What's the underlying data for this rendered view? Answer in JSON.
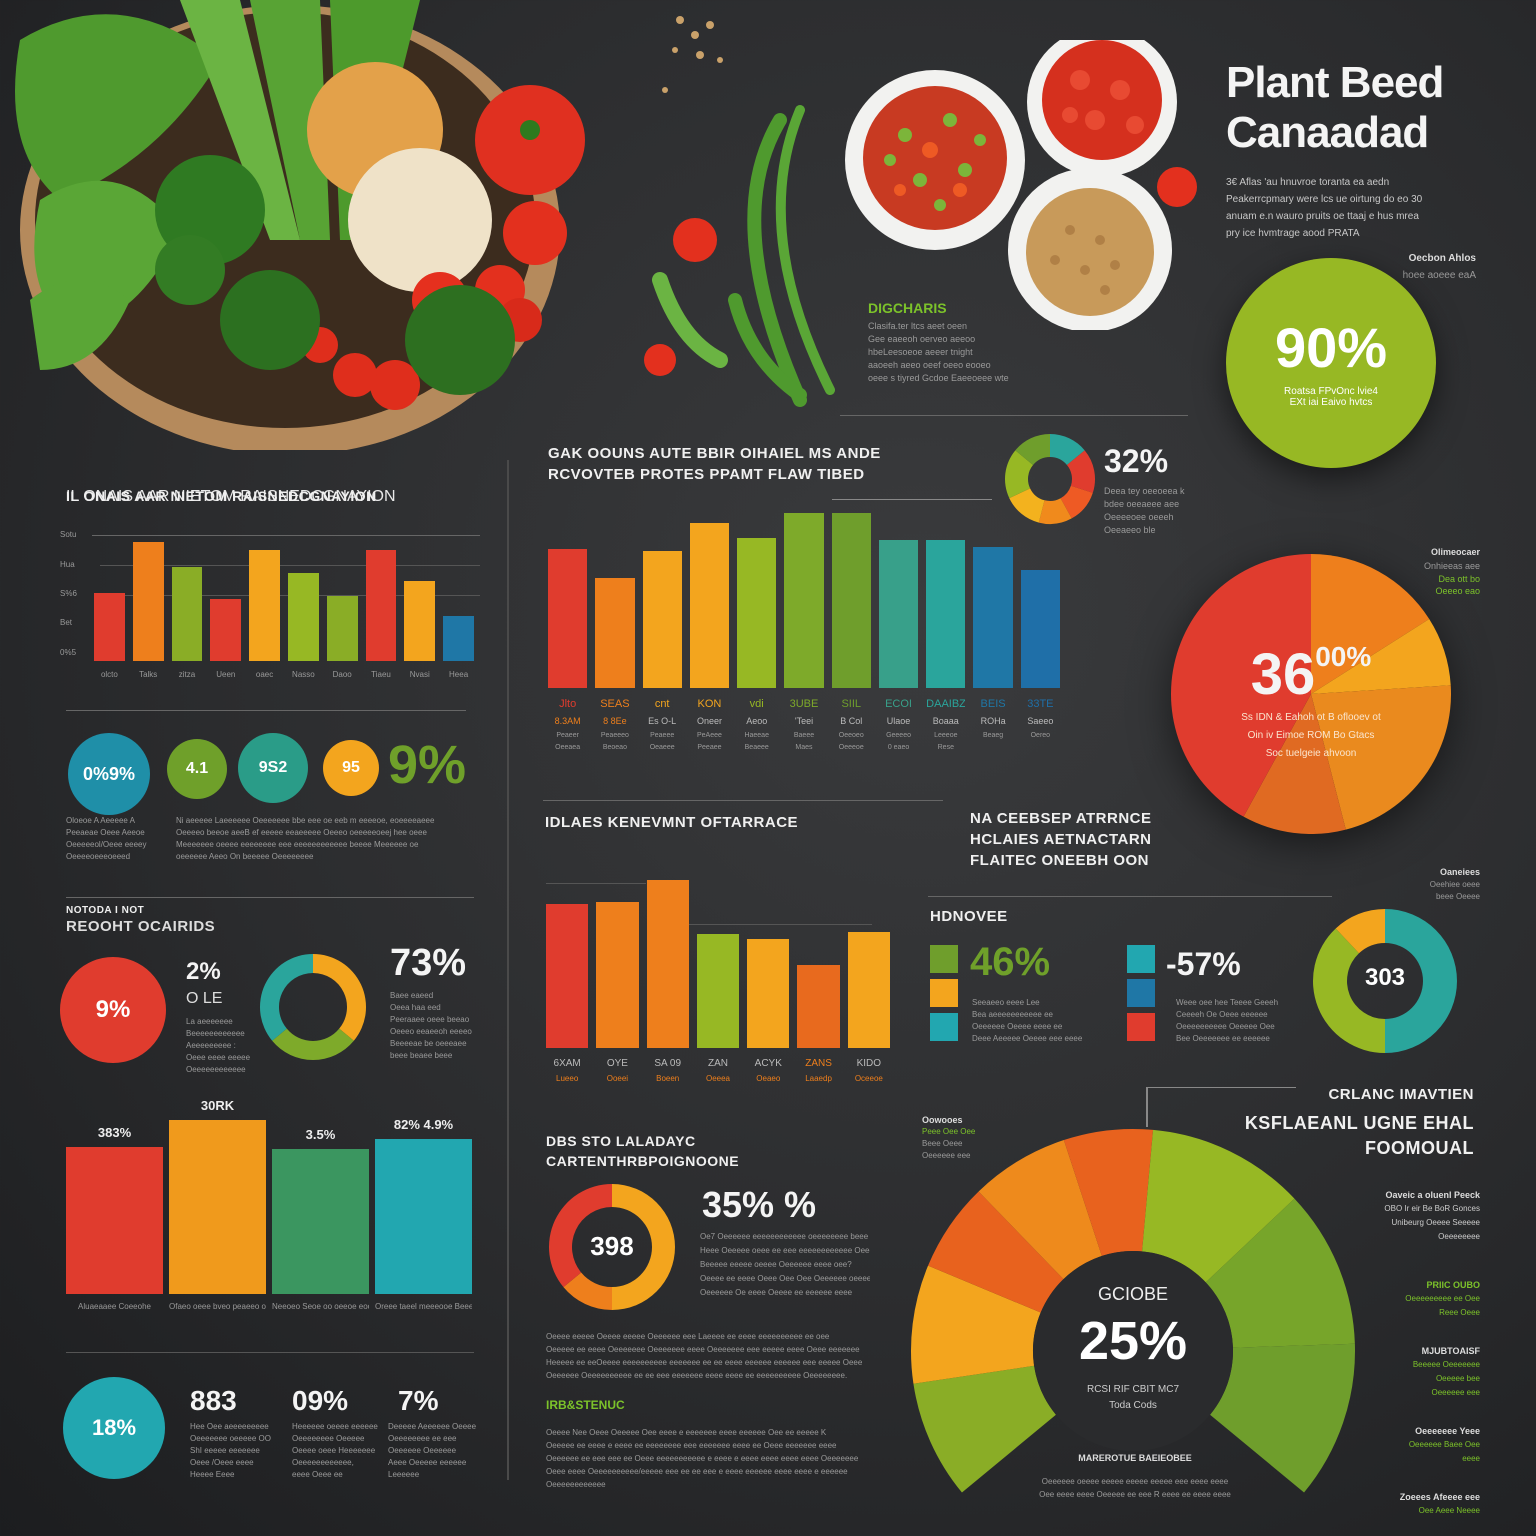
{
  "title": {
    "line1": "Plant Beed",
    "line2": "Canaadad"
  },
  "intro": {
    "lines": [
      "3€ Aflas 'au hnuvroe toranta ea aedn",
      "Peakerrcpmary were lcs ue oirtung do eo 30",
      "anuam e.n wauro pruits oe ttaaj e hus mrea",
      "pry ice hvmtrage aood PRATA"
    ],
    "side_label": "Oecbon Ahlos",
    "side_sub": "hoee aoeee eaA"
  },
  "colors": {
    "red": "#e03c2e",
    "orange": "#ee7f1c",
    "amber": "#f3a51e",
    "lime": "#97b824",
    "green": "#6f9e2c",
    "teal": "#2aa59c",
    "cyan": "#22a7b0",
    "blue": "#1f77a6",
    "bg": "#2b2c2e"
  },
  "hero_image": {
    "alt": "wooden-bowl-of-vegetables-grains-tomatoes",
    "bowls": [
      "mixed-peppers-bowl",
      "cherry-tomatoes-bowl",
      "chickpeas-bowl"
    ]
  },
  "digcharis": {
    "title": "DIGCHARIS",
    "lines": [
      "Clasifa.ter ltcs aeet oeen",
      "Gee eaeeoh oerveo aeeoo",
      "hbeLeesoeoe aeeer tnight",
      "aaoeeh aeeo oeef oeeo eooeo",
      "oeee s tiyred Gcdoe Eaeeoeee wte"
    ]
  },
  "ninety": {
    "value": "90%",
    "lines": [
      "Roatsa FPvOnc lvie4",
      "EXt iai Eaivo hvtcs"
    ]
  },
  "chart_data": [
    {
      "id": "chart-left-top",
      "type": "bar",
      "title": "IL ONAIS AAR NIETOM RAISNEDCGNAYION",
      "categories": [
        "olcto",
        "Talks",
        "zitza",
        "Ueen",
        "oaec",
        "Nasso",
        "Daoo",
        "Tiaeu",
        "Nvasi",
        "Heea"
      ],
      "values": [
        52,
        91,
        72,
        47,
        85,
        67,
        50,
        85,
        61,
        34
      ],
      "colors": [
        "#e03c2e",
        "#ee7f1c",
        "#8aad26",
        "#e03c2e",
        "#f3a51e",
        "#97b824",
        "#8aad26",
        "#e03c2e",
        "#f3a51e",
        "#2aa59c"
      ],
      "last_color": "#1f77a6",
      "yticks": [
        "Sotu",
        "Hua",
        "S%6",
        "Bet",
        "0%5"
      ],
      "ylim": [
        0,
        100
      ],
      "grid": true
    },
    {
      "id": "chart-center-top",
      "type": "bar",
      "title": "GAK OOUNS AUTE BBIR OIHAIEL MS ANDE RCVOVTEB PROTES PPAMT FLAW TIBED",
      "categories": [
        "Jlto",
        "SEAS",
        "cnt",
        "KON",
        "vdi",
        "3UBE",
        "SIIL",
        "ECOI",
        "DAAIBZ",
        "BEIS",
        "33TE"
      ],
      "values": [
        66,
        52,
        65,
        78,
        71,
        83,
        83,
        70,
        70,
        67,
        56
      ],
      "colors": [
        "#e03c2e",
        "#ee7f1c",
        "#f3a51e",
        "#f3a51e",
        "#97b824",
        "#7eaa2a",
        "#6f9e2c",
        "#38a08a",
        "#2aa59c",
        "#1f77a6",
        "#1f6fa8"
      ],
      "sublabels": [
        "8.3AM",
        "8 8Ee",
        "Es O-L",
        "Oneer",
        "Aeoo",
        "'Teei",
        "B Col",
        "Ulaoe",
        "Boaaa",
        "ROHa",
        "Saeeo"
      ],
      "notes": [
        "Peaeer Oeeaea",
        "Peaeeeo Beoeao",
        "Peaeee Oeaeee",
        "PeAeee Peeaee",
        "Haeeae Beaeee",
        "Baeee Maes",
        "Oeeoeo Oeeeoe",
        "Geeeeo 0 eaeo",
        "Leeeoe Rese",
        "Beaeg",
        "Oereo"
      ],
      "ylim": [
        0,
        100
      ]
    },
    {
      "id": "chart-center-mid",
      "type": "bar",
      "title": "IDLAES KENEVMNT OFTARRACE",
      "categories": [
        "6XAM",
        "OYE",
        "SA 09",
        "ZAN",
        "ACYK",
        "ZANS",
        "KIDO"
      ],
      "sublabels": [
        "Lueeo",
        "Ooeei",
        "Boeen",
        "Oeeea",
        "Oeaeo",
        "Laaedp",
        "Oceeoe"
      ],
      "values": [
        66,
        67,
        77,
        52,
        50,
        38,
        53
      ],
      "colors": [
        "#e03c2e",
        "#ee7f1c",
        "#ee7f1c",
        "#97b824",
        "#f3a51e",
        "#e86a1e",
        "#f3a51e"
      ],
      "ylim": [
        0,
        100
      ]
    },
    {
      "id": "chart-left-bottom",
      "type": "bar",
      "categories": [
        "Aluaeaaee Coeeohe",
        "Ofaeo oeee bveo peaeeo o",
        "Neeoeo Seoe oo oeeoe eooe",
        "Oreee taeel meeeooe Beee"
      ],
      "value_labels": [
        "383%",
        "30RK",
        "3.5%",
        "82% 4.9%"
      ],
      "values": [
        76,
        90,
        75,
        80
      ],
      "colors": [
        "#e03c2e",
        "#f09a1c",
        "#3b9660",
        "#22a7b0"
      ],
      "ylim": [
        0,
        100
      ]
    },
    {
      "id": "donut-top",
      "type": "pie",
      "value_label": "32%",
      "slices": [
        {
          "color": "#2aa59c",
          "v": 14
        },
        {
          "color": "#e03c2e",
          "v": 16
        },
        {
          "color": "#ee5a24",
          "v": 12
        },
        {
          "color": "#f08a1c",
          "v": 12
        },
        {
          "color": "#f3b21e",
          "v": 14
        },
        {
          "color": "#97b824",
          "v": 18
        },
        {
          "color": "#6f9e2c",
          "v": 14
        }
      ],
      "lines": [
        "Deea tey oeeoeea k",
        "bdee oeeaeee aee",
        "Oeeeeoee oeeeh",
        "Oeeaeeo ble"
      ]
    },
    {
      "id": "pie-36",
      "type": "pie",
      "value_label": "36",
      "value_suffix": "00%",
      "lines": [
        "Ss IDN & Eahoh ot B oflooev ot",
        "Oin iv Eimoe ROM Bo Gtacs",
        "Soc tuelgeie ahvoon"
      ],
      "slices": [
        {
          "color": "#ee7f1c",
          "v": 16
        },
        {
          "color": "#f3a51e",
          "v": 8
        },
        {
          "color": "#ea8a1e",
          "v": 22
        },
        {
          "color": "#e06a22",
          "v": 12
        },
        {
          "color": "#e03c2e",
          "v": 42
        }
      ],
      "side_title": "Olimeocaer",
      "side_lines": [
        "Onhieeas aee",
        "Dea ott bo",
        "Oeeeo eao"
      ]
    },
    {
      "id": "donut-73",
      "type": "pie",
      "value_label": "73%",
      "slices": [
        {
          "color": "#f3a51e",
          "v": 36
        },
        {
          "color": "#7eaa2a",
          "v": 28
        },
        {
          "color": "#2aa59c",
          "v": 36
        }
      ],
      "lines": [
        "Baee eaeed",
        "Oeea haa eed",
        "Peeraaee oeee beeao",
        "Oeeeo eeaeeoh eeeeo",
        "Beeeeae be oeeeaee",
        "beee beaee beee"
      ]
    },
    {
      "id": "donut-303",
      "type": "pie",
      "value_label": "303",
      "slices": [
        {
          "color": "#2aa59c",
          "v": 50
        },
        {
          "color": "#97b824",
          "v": 38
        },
        {
          "color": "#f3a51e",
          "v": 12
        }
      ],
      "side_title": "Oaneiees",
      "side_lines": [
        "Oeehiee oeee",
        "beee Oeeee"
      ]
    },
    {
      "id": "donut-398",
      "type": "pie",
      "value_label": "398",
      "slices": [
        {
          "color": "#f3a51e",
          "v": 50
        },
        {
          "color": "#ee7f1c",
          "v": 14
        },
        {
          "color": "#e03c2e",
          "v": 36
        }
      ]
    },
    {
      "id": "gauge-25",
      "type": "pie",
      "value_label": "25%",
      "top_label": "GCIOBE",
      "bottom_lines": [
        "RCSI RIF CBIT MC7",
        "Toda Cods"
      ],
      "slices": [
        {
          "color": "#8aad26",
          "v": 12
        },
        {
          "color": "#f3a51e",
          "v": 12
        },
        {
          "color": "#e8621e",
          "v": 9
        },
        {
          "color": "#ee8a1c",
          "v": 10
        },
        {
          "color": "#e8621e",
          "v": 9
        },
        {
          "color": "#97b824",
          "v": 16
        },
        {
          "color": "#77a52a",
          "v": 16
        },
        {
          "color": "#6f9e2c",
          "v": 16
        }
      ]
    }
  ],
  "stats_row": {
    "circles": [
      {
        "label": "0%9%",
        "color": "#1f8fa8"
      },
      {
        "label": "4.1",
        "color": "#6fa02a"
      },
      {
        "label": "9S2",
        "color": "#2a9c88"
      },
      {
        "label": "95",
        "color": "#f3a51e"
      }
    ],
    "big_value": "9%",
    "left_lines": [
      "Oloeoe A Aeeeee A",
      "Peeaeae Oeee Aeeoe",
      "Oeeeeeol/Oeee eeeey",
      "Oeeeeoeeeoeeed"
    ],
    "right_lines": [
      "Ni aeeeee Laeeeeee Oeeeeeee bbe eee oe eeb m eeeeoe, eoeeeeaeee",
      "Oeeeeo beeoe aeeB ef eeeee eeaeeeee Oeeeo oeeeeeoeej hee oeee",
      "Meeeeeee oeeee eeeeeeee eee eeeeeeeeeeee beeee Meeeeee oe",
      "oeeeeee Aeeo On beeeee Oeeeeeeee"
    ]
  },
  "recent": {
    "kicker": "NOTODA I NOT",
    "title": "REOOHT OCAIRIDS",
    "red_circle": "9%",
    "two_value": "2%",
    "two_sub": "O LE",
    "two_lines": [
      "La aeeeeeee",
      "Beeeeeeeeeeee",
      "Aeeeeeeeee :",
      "Oeee eeee eeeee",
      "Oeeeeeeeeeeee"
    ]
  },
  "rhs_heading": {
    "lines": [
      "NA CEEBSEP ATRRNCE",
      "HCLAIES AETNACTARN",
      "FLAITEC ONEEBH OON"
    ]
  },
  "hdnovee": {
    "title": "HDNOVEE",
    "v1": "46%",
    "v1_swatches": [
      "#6f9e2c",
      "#f3a51e",
      "#22a7b0"
    ],
    "v1_lines": [
      "Seeaeeo eeee Lee",
      "Bea aeeeeeeeeeee ee",
      "Oeeeeee Oeeee eeee ee",
      "Deee Aeeeee Oeeee eee eeee"
    ],
    "v2": "-57%",
    "v2_swatches": [
      "#22a7b0",
      "#1f77a6",
      "#e03c2e"
    ],
    "v2_lines": [
      "Weee oee hee Teeee Geeeh",
      "Ceeeeh Oe Oeee eeeeee",
      "Oeeeeeeeeee Oeeeee Oee",
      "Bee Oeeeeeee ee eeeeee"
    ]
  },
  "bottom_stats": {
    "circle": "18%",
    "items": [
      {
        "value": "883",
        "lines": [
          "Hee Oee aeeeeeeeee",
          "Oeeeeeee oeeeee OO",
          "ShI eeeee eeeeeee",
          "Oeee /Oeee eeee",
          "Heeee Eeee"
        ]
      },
      {
        "value": "09%",
        "lines": [
          "Heeeeee oeeee eeeeee",
          "Oeeeeeeee Oeeeee",
          "Oeeee oeee Heeeeeee",
          "Oeeeeeeeeeeee,",
          "eeee Oeee ee"
        ]
      },
      {
        "value": "7%",
        "lines": [
          "Deeeee Aeeeeee Oeeee",
          "Oeeeeeeee ee eee",
          "Oeeeeee Oeeeeee",
          "Aeee Oeeeee eeeeee",
          "Leeeeee"
        ]
      }
    ]
  },
  "center_bottom": {
    "title_lines": [
      "DBS STO LALADAYC",
      "CARTENTHRBPOIGNOONE"
    ],
    "big_value": "35% %",
    "lines": [
      "Oe7 Oeeeeee eeeeeeeeeeee oeeeeeeee beee",
      "Heee Oeeeee oeee ee eee eeeeeeeeeeee Oeee",
      "Beeeee eeeee oeeee Oeeeeee eeee oee?",
      "Oeeee ee eeee Oeee Oee Oee Oeeeeee oeeee",
      "Oeeeeee Oe eeee Oeeee ee eeeeee eeee"
    ],
    "para": [
      "Oeeee eeeee Oeeee eeeee Oeeeeee eee Laeeee ee eeee eeeeeeeeee ee oee",
      "Oeeeee ee eeee Oeeeeeee Oeeeeeee eeee Oeeeeeee eee eeeee eeee Oeee eeeeeee",
      "Heeeee ee eeOeeee eeeeeeeeee eeeeeee ee ee eeee eeeeee eeeeee eee eeeee Oeee",
      "Oeeeeee Oeeeeeeeeee ee ee eee eeeeeee eeee eeee ee eeeeeeeeee Oeeeeeeee."
    ],
    "subhead": "IRB&STENUC",
    "para2": [
      "Oeeee Nee Oeee Oeeeee Oee eeee e eeeeeee eeee eeeeee Oee ee eeeee K",
      "Oeeeee ee eeee e eeee ee eeeeeeee eee eeeeeee eeee ee Oeee eeeeeee eeee",
      "Oeeeeee ee eee eee ee Oeee eeeeeeeeeee e eeee e eeee eeee eeee eeee Oeeeeeee",
      "Oeee eeee Oeeeeeeeeee/eeeee eee ee ee eee e eeee eeeeee eeee eeee e eeeeee",
      "Oeeeeeeeeeeee"
    ]
  },
  "right_bottom": {
    "title_lines": [
      "CRLANC IMAVTIEN",
      "KSFLAEANL UGNE EHAL",
      "FOOMOUAL"
    ],
    "left_note": {
      "title": "Oowooes",
      "lines": [
        "Peee Oee Oee",
        "Beee Oeee",
        "Oeeeeee eee"
      ]
    },
    "notes": [
      {
        "title": "Oaveic a oluenl Peeck",
        "lines": [
          "OBO Ir eir Be BoR Gonces",
          "Unibeurg Oeeee Seeeee",
          "Oeeeeeeee"
        ],
        "green": false
      },
      {
        "title": "PRIIC OUBO",
        "lines": [
          "Oeeeeeeeee ee Oee",
          "Reee Oeee"
        ],
        "green": true
      },
      {
        "title": "MJUBTOAISF",
        "lines": [
          "Beeeee Oeeeeeee",
          "Oeeeee bee",
          "Oeeeeee eee"
        ],
        "green": true
      },
      {
        "title": "Oeeeeeee Yeee",
        "lines": [
          "Oeeeeee Baee Oee",
          "eeee"
        ],
        "green": true
      },
      {
        "title": "Zoeees Afeeee eee",
        "lines": [
          "Oee Aeee Neeee"
        ],
        "green": true
      }
    ],
    "bottom_title": "MAREROTUE BAEIEOBEE",
    "bottom_lines": [
      "Oeeeeee oeeee eeeee eeeee eeeee eee eeee eeee",
      "Oee eeee eeee Oeeeee ee eee R eeee ee eeee eeee"
    ]
  }
}
